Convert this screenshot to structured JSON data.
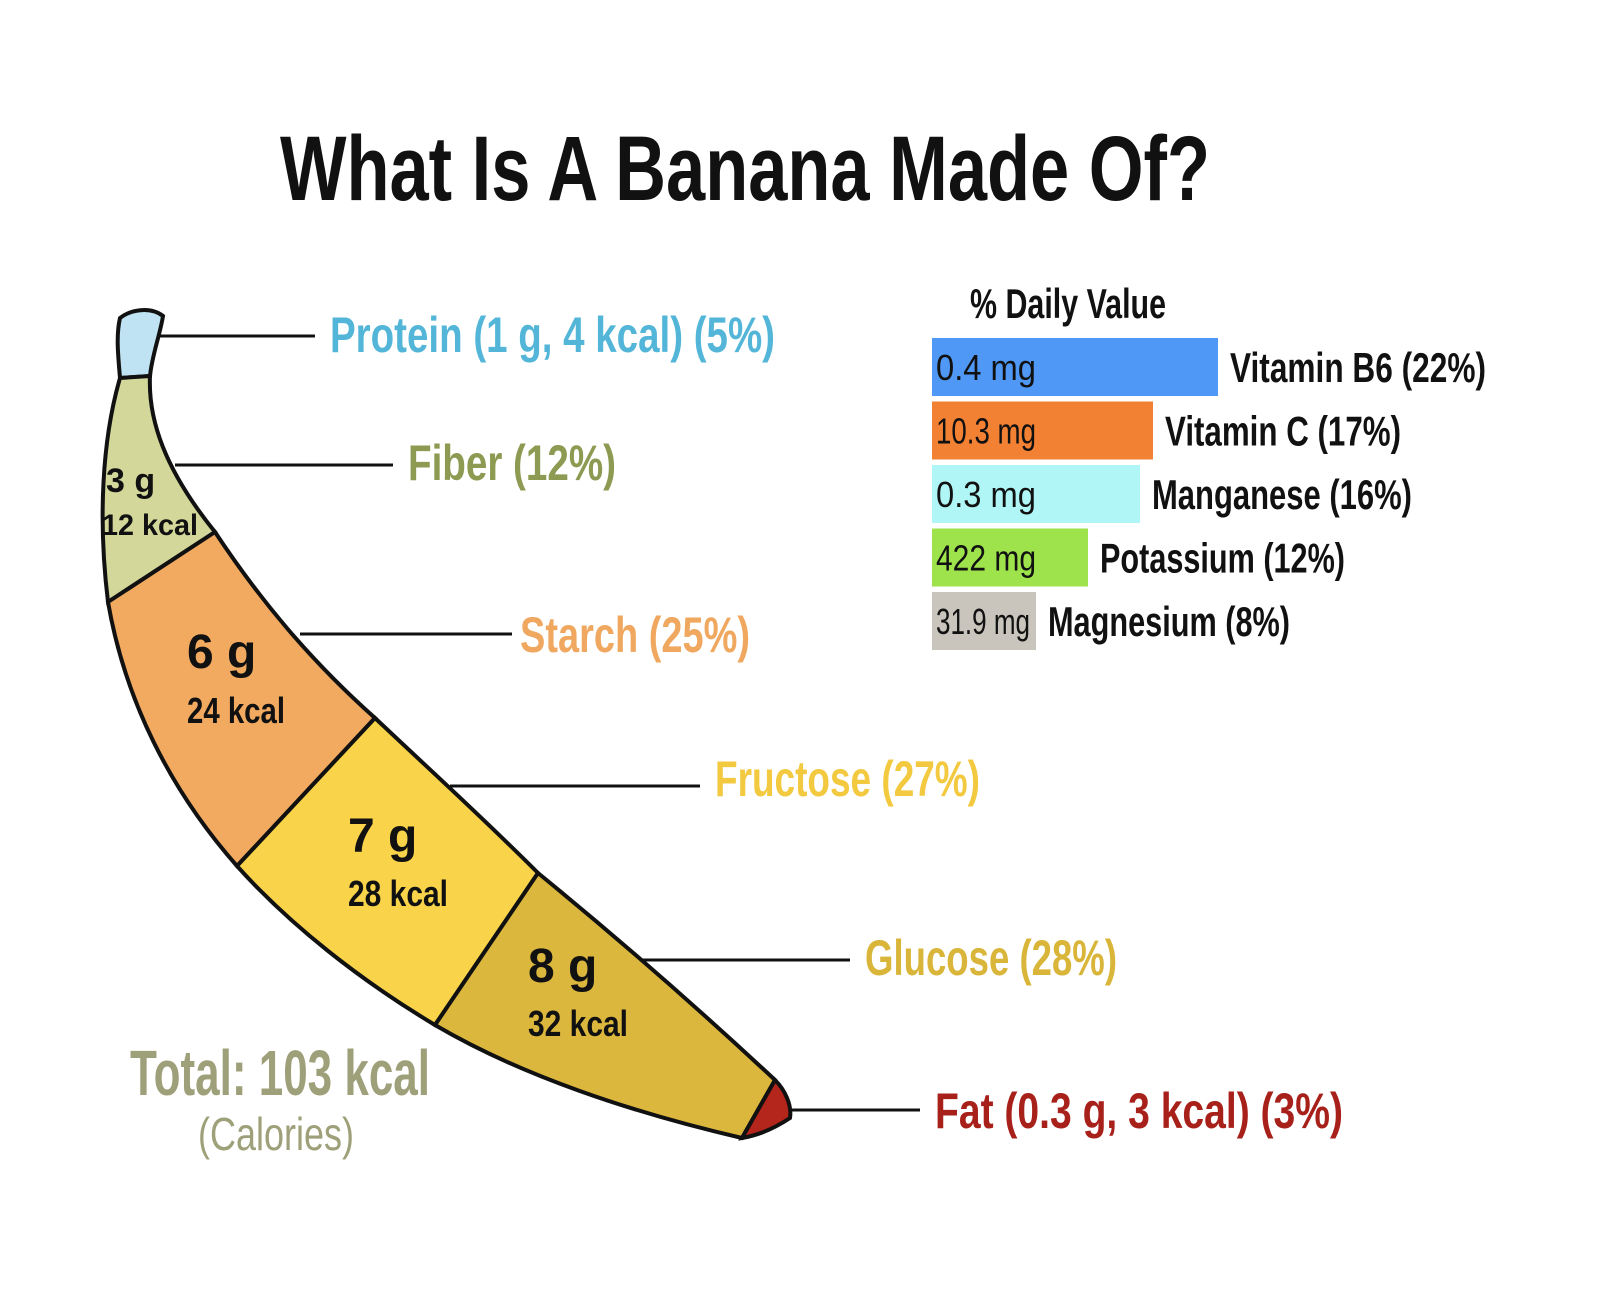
{
  "chart_data": [
    {
      "type": "banana-breakdown",
      "title": "What Is A Banana Made Of?",
      "segments": [
        {
          "name": "Protein (1 g, 4 kcal) (5%)",
          "grams": "",
          "kcal": "",
          "percent": 5,
          "color": "#bfe3f2",
          "label_color": "#53b6d8"
        },
        {
          "name": "Fiber (12%)",
          "grams": "3 g",
          "kcal": "12 kcal",
          "percent": 12,
          "color": "#d3d79a",
          "label_color": "#8c9a52"
        },
        {
          "name": "Starch (25%)",
          "grams": "6 g",
          "kcal": "24 kcal",
          "percent": 25,
          "color": "#f1aa60",
          "label_color": "#f0a860"
        },
        {
          "name": "Fructose (27%)",
          "grams": "7 g",
          "kcal": "28 kcal",
          "percent": 27,
          "color": "#f9d44a",
          "label_color": "#f2c93f"
        },
        {
          "name": "Glucose (28%)",
          "grams": "8 g",
          "kcal": "32 kcal",
          "percent": 28,
          "color": "#dcb73d",
          "label_color": "#d9b53a"
        },
        {
          "name": "Fat (0.3 g, 3 kcal) (3%)",
          "grams": "",
          "kcal": "",
          "percent": 3,
          "color": "#b4251c",
          "label_color": "#a8201a"
        }
      ],
      "total": {
        "text": "Total: 103 kcal",
        "subtext": "(Calories)",
        "color": "#9ea07a"
      }
    },
    {
      "type": "bar",
      "orientation": "horizontal",
      "title": "% Daily Value",
      "categories": [
        "Vitamin B6 (22%)",
        "Vitamin C (17%)",
        "Manganese (16%)",
        "Potassium (12%)",
        "Magnesium (8%)"
      ],
      "values": [
        22,
        17,
        16,
        12,
        8
      ],
      "bar_labels": [
        "0.4 mg",
        "10.3 mg",
        "0.3 mg",
        "422 mg",
        "31.9 mg"
      ],
      "colors": [
        "#4f98f5",
        "#f28133",
        "#b0f6f7",
        "#9ee34c",
        "#c9c4bc"
      ]
    }
  ]
}
